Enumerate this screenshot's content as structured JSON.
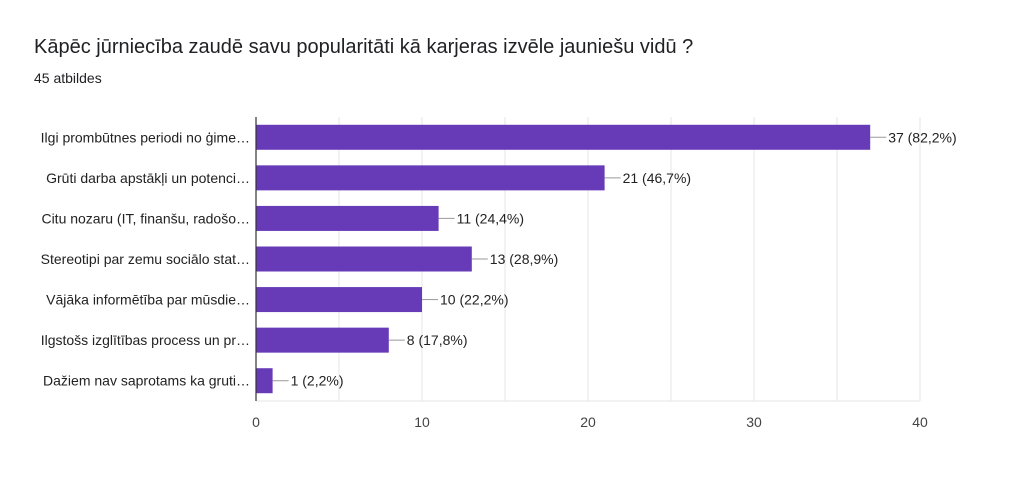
{
  "header": {
    "title": "Kāpēc jūrniecība zaudē savu popularitāti kā karjeras izvēle jauniešu vidū ?",
    "subtitle": "45 atbildes"
  },
  "colors": {
    "bar": "#673ab7",
    "grid": "#e6e6e6",
    "axis": "#333333",
    "leader": "#999999"
  },
  "chart_data": {
    "type": "bar",
    "orientation": "horizontal",
    "title": "Kāpēc jūrniecība zaudē savu popularitāti kā karjeras izvēle jauniešu vidū ?",
    "subtitle": "45 atbildes",
    "categories": [
      "Ilgi prombūtnes periodi no ģime…",
      "Grūti darba apstākļi un potenci…",
      "Citu nozaru (IT, finanšu, radošo…",
      "Stereotipi par zemu sociālo stat…",
      "Vājāka informētība par mūsdie…",
      "Ilgstošs izglītības process un pr…",
      "Dažiem nav saprotams ka gruti…"
    ],
    "values": [
      37,
      21,
      11,
      13,
      10,
      8,
      1
    ],
    "data_labels": [
      "37 (82,2%)",
      "21 (46,7%)",
      "11 (24,4%)",
      "13 (28,9%)",
      "10 (22,2%)",
      "8 (17,8%)",
      "1 (2,2%)"
    ],
    "xlim": [
      0,
      40
    ],
    "xticks": [
      0,
      10,
      20,
      30,
      40
    ],
    "grid": true,
    "legend": "none"
  }
}
